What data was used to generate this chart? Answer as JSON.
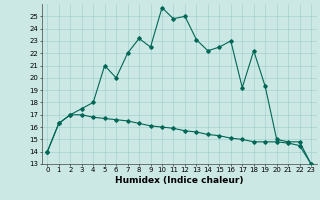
{
  "xlabel": "Humidex (Indice chaleur)",
  "bg_color": "#cce8e4",
  "grid_color": "#99cccc",
  "line_color": "#006655",
  "x_values": [
    0,
    1,
    2,
    3,
    4,
    5,
    6,
    7,
    8,
    9,
    10,
    11,
    12,
    13,
    14,
    15,
    16,
    17,
    18,
    19,
    20,
    21,
    22,
    23
  ],
  "line1_y": [
    14.0,
    16.3,
    17.0,
    17.5,
    18.0,
    21.0,
    20.0,
    22.0,
    23.2,
    22.5,
    25.7,
    24.8,
    25.0,
    23.1,
    22.2,
    22.5,
    23.0,
    19.2,
    22.2,
    19.3,
    15.0,
    14.8,
    14.8,
    13.0
  ],
  "line2_y": [
    14.0,
    16.3,
    17.0,
    17.0,
    16.8,
    16.7,
    16.6,
    16.5,
    16.3,
    16.1,
    16.0,
    15.9,
    15.7,
    15.6,
    15.4,
    15.3,
    15.1,
    15.0,
    14.8,
    14.8,
    14.8,
    14.7,
    14.5,
    13.0
  ],
  "xlim": [
    -0.5,
    23.5
  ],
  "ylim": [
    13,
    26
  ],
  "yticks": [
    13,
    14,
    15,
    16,
    17,
    18,
    19,
    20,
    21,
    22,
    23,
    24,
    25
  ],
  "xticks": [
    0,
    1,
    2,
    3,
    4,
    5,
    6,
    7,
    8,
    9,
    10,
    11,
    12,
    13,
    14,
    15,
    16,
    17,
    18,
    19,
    20,
    21,
    22,
    23
  ],
  "tick_fontsize": 5,
  "label_fontsize": 6.5,
  "marker": "D",
  "marker_size": 1.8,
  "line_width": 0.8
}
